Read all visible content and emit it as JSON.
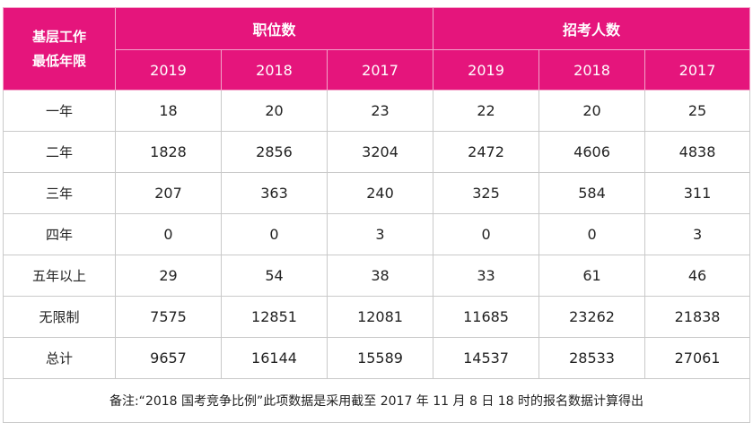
{
  "table": {
    "corner_label_line1": "基层工作",
    "corner_label_line2": "最低年限",
    "groups": [
      "职位数",
      "招考人数"
    ],
    "years": [
      "2019",
      "2018",
      "2017",
      "2019",
      "2018",
      "2017"
    ],
    "rows": [
      {
        "label": "一年",
        "values": [
          "18",
          "20",
          "23",
          "22",
          "20",
          "25"
        ]
      },
      {
        "label": "二年",
        "values": [
          "1828",
          "2856",
          "3204",
          "2472",
          "4606",
          "4838"
        ]
      },
      {
        "label": "三年",
        "values": [
          "207",
          "363",
          "240",
          "325",
          "584",
          "311"
        ]
      },
      {
        "label": "四年",
        "values": [
          "0",
          "0",
          "3",
          "0",
          "0",
          "3"
        ]
      },
      {
        "label": "五年以上",
        "values": [
          "29",
          "54",
          "38",
          "33",
          "61",
          "46"
        ]
      },
      {
        "label": "无限制",
        "values": [
          "7575",
          "12851",
          "12081",
          "11685",
          "23262",
          "21838"
        ]
      },
      {
        "label": "总计",
        "values": [
          "9657",
          "16144",
          "15589",
          "14537",
          "28533",
          "27061"
        ]
      }
    ],
    "footnote": "备注:“2018 国考竞争比例”此项数据是采用截至 2017 年 11 月 8 日 18 时的报名数据计算得出"
  },
  "colors": {
    "header_bg": "#e5157c",
    "header_text": "#ffffff",
    "border": "#c9c9c9"
  }
}
